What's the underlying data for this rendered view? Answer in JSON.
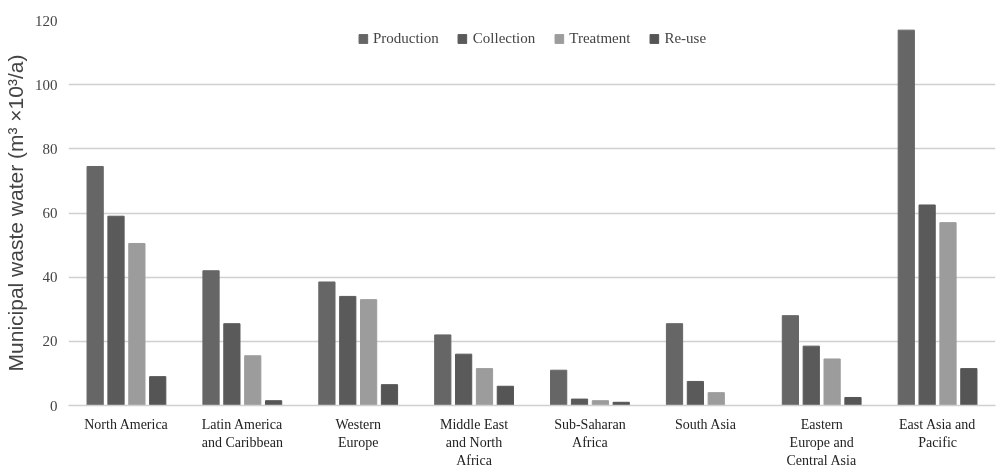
{
  "chart_data": {
    "type": "bar",
    "ylabel": "Municipal waste water (m³ ×10³/a)",
    "categories": [
      "North America",
      "Latin America and Caribbean",
      "Western Europe",
      "Middle East and North Africa",
      "Sub-Saharan Africa",
      "South Asia",
      "Eastern Europe and Central Asia",
      "East Asia and Pacific"
    ],
    "series": [
      {
        "name": "Production",
        "color": "#666666",
        "values": [
          74.5,
          42,
          38.5,
          22,
          11,
          25.5,
          28,
          117
        ]
      },
      {
        "name": "Collection",
        "color": "#5a5a5a",
        "values": [
          59,
          25.5,
          34,
          16,
          2,
          7.5,
          18.5,
          62.5
        ]
      },
      {
        "name": "Treatment",
        "color": "#9c9c9c",
        "values": [
          50.5,
          15.5,
          33,
          11.5,
          1.5,
          4,
          14.5,
          57
        ]
      },
      {
        "name": "Re-use",
        "color": "#555555",
        "values": [
          9,
          1.5,
          6.5,
          6,
          1,
          null,
          2.5,
          11.5
        ]
      }
    ],
    "ylim": [
      0,
      120
    ],
    "yticks": [
      0,
      20,
      40,
      60,
      80,
      100,
      120
    ],
    "grid": "y",
    "legend": "top"
  }
}
